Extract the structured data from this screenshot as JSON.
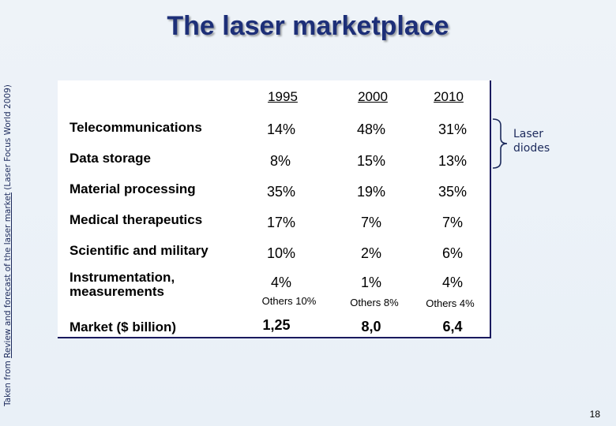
{
  "slide": {
    "title": "The laser marketplace",
    "credit_prefix": "Taken from ",
    "credit_link": "Review and forecast of the laser market",
    "credit_suffix": " (Laser Focus World 2009)",
    "page_number": "18"
  },
  "table": {
    "years": [
      "1995",
      "2000",
      "2010"
    ],
    "rows": [
      {
        "label": "Telecommunications",
        "values": [
          "14%",
          "48%",
          "31%"
        ]
      },
      {
        "label": "Data storage",
        "values": [
          "8%",
          "15%",
          "13%"
        ]
      },
      {
        "label": "Material processing",
        "values": [
          "35%",
          "19%",
          "35%"
        ]
      },
      {
        "label": "Medical therapeutics",
        "values": [
          "17%",
          "7%",
          "7%"
        ]
      },
      {
        "label": "Scientific and military",
        "values": [
          "10%",
          "2%",
          "6%"
        ]
      },
      {
        "label_line1": "Instrumentation,",
        "label_line2": "measurements",
        "values": [
          "4%",
          "1%",
          "4%"
        ]
      }
    ],
    "others": [
      "Others 10%",
      "Others 8%",
      "Others 4%"
    ],
    "market": {
      "label": "Market ($ billion)",
      "values": [
        "1,25",
        "8,0",
        "6,4"
      ]
    }
  },
  "annotation": {
    "line1": "Laser",
    "line2": "diodes"
  },
  "colors": {
    "title": "#1d2f78",
    "background": "#eef3f8",
    "table_border": "#1a1a5e"
  }
}
